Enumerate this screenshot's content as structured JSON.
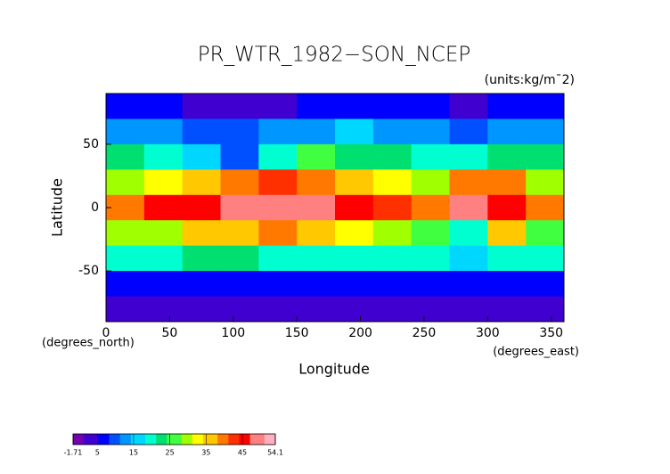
{
  "chart_data": {
    "type": "heatmap",
    "title": "PR_WTR_1982−SON_NCEP",
    "units": "(units:kg/m¯2)",
    "xlabel": "Longitude",
    "ylabel": "Latitude",
    "xunit": "(degrees_east)",
    "yunit": "(degrees_north)",
    "x": [
      15,
      45,
      75,
      105,
      135,
      165,
      195,
      225,
      255,
      285,
      315,
      345
    ],
    "y": [
      80,
      60,
      40,
      20,
      0,
      -20,
      -40,
      -60,
      -80
    ],
    "values": [
      [
        6,
        5,
        4,
        4,
        4,
        5,
        5,
        5,
        5,
        4,
        5,
        6
      ],
      [
        12,
        13,
        10,
        10,
        12,
        14,
        15,
        14,
        12,
        10,
        14,
        14
      ],
      [
        22,
        18,
        15,
        10,
        20,
        25,
        24,
        22,
        20,
        18,
        22,
        22
      ],
      [
        30,
        32,
        35,
        40,
        42,
        38,
        35,
        32,
        30,
        38,
        40,
        28
      ],
      [
        38,
        45,
        47,
        48,
        50,
        48,
        45,
        42,
        40,
        48,
        45,
        40
      ],
      [
        28,
        30,
        35,
        35,
        38,
        35,
        33,
        30,
        25,
        20,
        35,
        25
      ],
      [
        20,
        20,
        22,
        22,
        20,
        20,
        20,
        18,
        18,
        16,
        20,
        20
      ],
      [
        8,
        8,
        8,
        8,
        8,
        8,
        8,
        8,
        8,
        8,
        8,
        8
      ],
      [
        2,
        2,
        2,
        2,
        2,
        2,
        2,
        2,
        2,
        2,
        2,
        2
      ]
    ],
    "xlim": [
      0,
      360
    ],
    "ylim": [
      -90,
      90
    ],
    "xticks": [
      0,
      50,
      100,
      150,
      200,
      250,
      300,
      350
    ],
    "yticks": [
      -50,
      0,
      50
    ],
    "clim": [
      -1.71,
      54.1
    ],
    "cticks": [
      -1.71,
      5,
      15,
      25,
      35,
      45,
      54.1
    ],
    "colorscale": [
      "#7000b0",
      "#4000d0",
      "#0000ff",
      "#0050ff",
      "#0096ff",
      "#00d7ff",
      "#00ffd0",
      "#00e070",
      "#40ff40",
      "#a0ff00",
      "#ffff00",
      "#ffc800",
      "#ff7800",
      "#ff3000",
      "#ff0000",
      "#ff8080",
      "#ffb0c0"
    ]
  }
}
